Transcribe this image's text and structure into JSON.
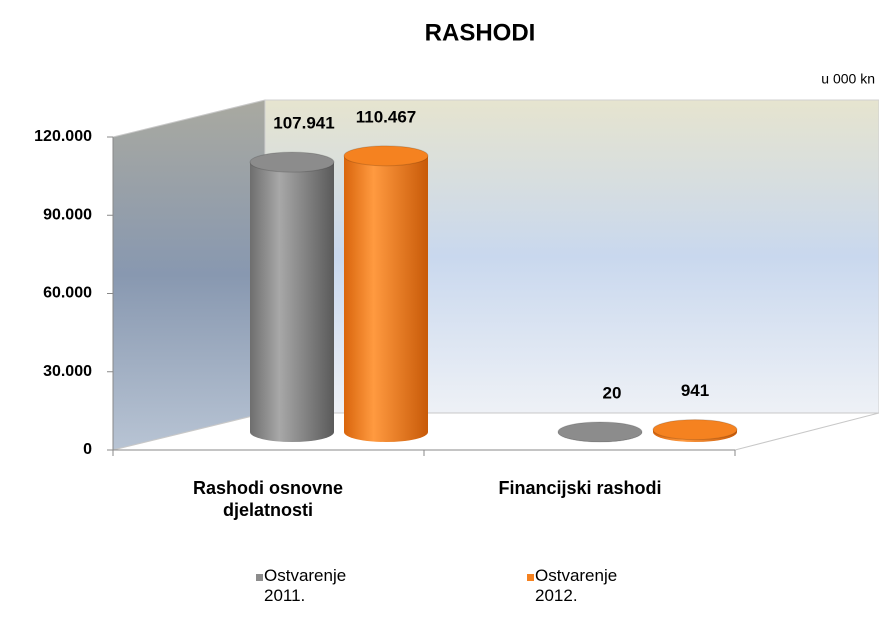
{
  "chart_data": {
    "type": "bar3d",
    "title": "RASHODI",
    "unit_label": "u 000 kn",
    "categories": [
      "Rashodi osnovne djelatnosti",
      "Financijski rashodi"
    ],
    "series": [
      {
        "name": "Ostvarenje 2011.",
        "color": "#8c8c8c",
        "values": [
          107941,
          20
        ],
        "value_labels": [
          "107.941",
          "20"
        ]
      },
      {
        "name": "Ostvarenje 2012.",
        "color": "#f58220",
        "values": [
          110467,
          941
        ],
        "value_labels": [
          "110.467",
          "941"
        ]
      }
    ],
    "ylim": [
      0,
      120000
    ],
    "yticks": [
      0,
      {
        "value": 30000,
        "label": "30.000"
      },
      {
        "value": 60000,
        "label": "60.000"
      },
      {
        "value": 90000,
        "label": "90.000"
      },
      {
        "value": 120000,
        "label": "120.000"
      }
    ],
    "legend": "bottom"
  }
}
